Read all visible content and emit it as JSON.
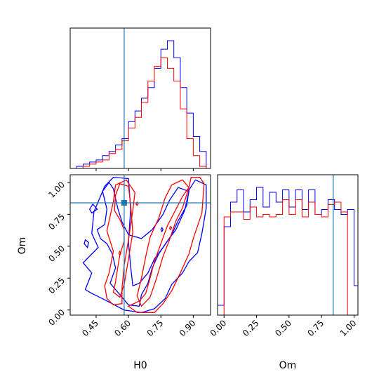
{
  "chart_data": {
    "type": "corner",
    "parameters": [
      "H0",
      "Om"
    ],
    "truth": {
      "H0": 0.58,
      "Om": 0.84
    },
    "colors": {
      "series_a": "#0000ff",
      "series_b": "#ff0000",
      "truth": "#1f77b4"
    },
    "x_range_H0": [
      0.33,
      0.98
    ],
    "x_range_Om": [
      -0.05,
      1.03
    ],
    "y_range_Om": [
      -0.04,
      1.06
    ],
    "axis_labels": {
      "x_left": "H0",
      "x_right": "Om",
      "y_left": "Om"
    },
    "ticks_H0": [
      "0.45",
      "0.60",
      "0.75",
      "0.90"
    ],
    "ticks_Om": [
      "0.00",
      "0.25",
      "0.50",
      "0.75",
      "1.00"
    ],
    "hist_H0": {
      "bins": [
        0.36,
        0.39,
        0.42,
        0.45,
        0.48,
        0.51,
        0.54,
        0.57,
        0.6,
        0.63,
        0.66,
        0.69,
        0.72,
        0.75,
        0.78,
        0.81,
        0.84,
        0.87,
        0.9,
        0.93,
        0.96
      ],
      "series": [
        {
          "counts": [
            1,
            2,
            3,
            4,
            6,
            8,
            11,
            14,
            22,
            27,
            33,
            38,
            47,
            56,
            60,
            52,
            38,
            26,
            15,
            8
          ]
        },
        {
          "counts": [
            0,
            1,
            2,
            3,
            4,
            7,
            9,
            13,
            19,
            24,
            31,
            41,
            48,
            52,
            47,
            41,
            28,
            14,
            6,
            1
          ]
        }
      ]
    },
    "hist_Om": {
      "bins": [
        -0.05,
        0.0,
        0.05,
        0.1,
        0.15,
        0.2,
        0.25,
        0.3,
        0.35,
        0.4,
        0.45,
        0.5,
        0.55,
        0.6,
        0.65,
        0.7,
        0.75,
        0.8,
        0.85,
        0.9,
        0.95,
        1.0,
        1.03
      ],
      "series": [
        {
          "counts": [
            4,
            36,
            46,
            51,
            42,
            47,
            52,
            44,
            50,
            46,
            51,
            44,
            51,
            43,
            51,
            41,
            43,
            47,
            43,
            41,
            43,
            12
          ]
        },
        {
          "counts": [
            0,
            40,
            42,
            42,
            39,
            44,
            40,
            41,
            40,
            41,
            47,
            41,
            47,
            40,
            46,
            41,
            40,
            45,
            46,
            42,
            0,
            0
          ]
        }
      ]
    },
    "contours": [
      {
        "series": 0,
        "points": [
          [
            0.455,
            0.63
          ],
          [
            0.47,
            0.56
          ],
          [
            0.5,
            0.52
          ],
          [
            0.525,
            0.44
          ],
          [
            0.54,
            0.33
          ],
          [
            0.515,
            0.21
          ],
          [
            0.6,
            0.04
          ],
          [
            0.65,
            0.03
          ],
          [
            0.66,
            0.12
          ],
          [
            0.69,
            0.21
          ],
          [
            0.71,
            0.33
          ],
          [
            0.74,
            0.44
          ],
          [
            0.78,
            0.54
          ],
          [
            0.82,
            0.63
          ],
          [
            0.86,
            0.78
          ],
          [
            0.88,
            0.93
          ],
          [
            0.83,
            0.96
          ],
          [
            0.79,
            0.86
          ],
          [
            0.76,
            0.75
          ],
          [
            0.71,
            0.63
          ],
          [
            0.66,
            0.56
          ],
          [
            0.6,
            0.59
          ],
          [
            0.57,
            0.69
          ],
          [
            0.55,
            0.8
          ],
          [
            0.53,
            0.95
          ],
          [
            0.51,
            1.0
          ],
          [
            0.48,
            0.93
          ],
          [
            0.5,
            0.79
          ],
          [
            0.49,
            0.67
          ]
        ]
      },
      {
        "series": 0,
        "points": [
          [
            0.39,
            0.37
          ],
          [
            0.43,
            0.29
          ],
          [
            0.4,
            0.16
          ],
          [
            0.43,
            0.13
          ],
          [
            0.49,
            0.08
          ],
          [
            0.58,
            0.0
          ],
          [
            0.66,
            -0.02
          ],
          [
            0.72,
            0.01
          ],
          [
            0.77,
            0.09
          ],
          [
            0.8,
            0.2
          ],
          [
            0.85,
            0.29
          ],
          [
            0.88,
            0.38
          ],
          [
            0.92,
            0.45
          ],
          [
            0.94,
            0.6
          ],
          [
            0.95,
            0.7
          ],
          [
            0.96,
            0.8
          ],
          [
            0.96,
            0.98
          ],
          [
            0.91,
            1.02
          ],
          [
            0.88,
            0.94
          ],
          [
            0.87,
            0.82
          ],
          [
            0.83,
            0.7
          ],
          [
            0.8,
            0.59
          ],
          [
            0.76,
            0.49
          ],
          [
            0.72,
            0.4
          ],
          [
            0.69,
            0.29
          ],
          [
            0.65,
            0.21
          ],
          [
            0.62,
            0.19
          ],
          [
            0.61,
            0.34
          ],
          [
            0.6,
            0.53
          ],
          [
            0.61,
            0.79
          ],
          [
            0.6,
            1.03
          ],
          [
            0.53,
            1.04
          ],
          [
            0.49,
            0.97
          ],
          [
            0.44,
            0.77
          ],
          [
            0.43,
            0.6
          ],
          [
            0.46,
            0.49
          ]
        ]
      },
      {
        "series": 0,
        "points": [
          [
            0.4,
            0.55
          ],
          [
            0.415,
            0.53
          ],
          [
            0.41,
            0.49
          ],
          [
            0.395,
            0.52
          ]
        ]
      },
      {
        "series": 0,
        "points": [
          [
            0.455,
            0.79
          ],
          [
            0.43,
            0.76
          ],
          [
            0.42,
            0.79
          ],
          [
            0.435,
            0.83
          ]
        ]
      },
      {
        "series": 1,
        "points": [
          [
            0.535,
            0.78
          ],
          [
            0.56,
            0.71
          ],
          [
            0.58,
            0.63
          ],
          [
            0.58,
            0.54
          ],
          [
            0.56,
            0.43
          ],
          [
            0.55,
            0.33
          ],
          [
            0.54,
            0.22
          ],
          [
            0.53,
            0.14
          ],
          [
            0.56,
            0.1
          ],
          [
            0.58,
            0.2
          ],
          [
            0.6,
            0.4
          ],
          [
            0.62,
            0.61
          ],
          [
            0.61,
            0.82
          ],
          [
            0.6,
            0.97
          ],
          [
            0.56,
            0.99
          ],
          [
            0.54,
            0.9
          ]
        ]
      },
      {
        "series": 1,
        "points": [
          [
            0.66,
            0.03
          ],
          [
            0.7,
            0.1
          ],
          [
            0.73,
            0.25
          ],
          [
            0.76,
            0.42
          ],
          [
            0.79,
            0.55
          ],
          [
            0.82,
            0.7
          ],
          [
            0.85,
            0.8
          ],
          [
            0.88,
            0.96
          ],
          [
            0.85,
            1.02
          ],
          [
            0.8,
            0.98
          ],
          [
            0.77,
            0.88
          ],
          [
            0.74,
            0.72
          ],
          [
            0.7,
            0.57
          ],
          [
            0.68,
            0.42
          ],
          [
            0.66,
            0.25
          ],
          [
            0.64,
            0.11
          ]
        ]
      },
      {
        "series": 1,
        "points": [
          [
            0.6,
            0.03
          ],
          [
            0.64,
            -0.02
          ],
          [
            0.72,
            -0.02
          ],
          [
            0.76,
            0.05
          ],
          [
            0.8,
            0.15
          ],
          [
            0.84,
            0.29
          ],
          [
            0.88,
            0.44
          ],
          [
            0.9,
            0.56
          ],
          [
            0.94,
            0.76
          ],
          [
            0.95,
            0.99
          ],
          [
            0.93,
            1.04
          ],
          [
            0.89,
            1.04
          ],
          [
            0.88,
            0.96
          ],
          [
            0.85,
            0.89
          ],
          [
            0.82,
            0.79
          ],
          [
            0.78,
            0.66
          ],
          [
            0.75,
            0.52
          ],
          [
            0.72,
            0.38
          ],
          [
            0.7,
            0.25
          ],
          [
            0.68,
            0.13
          ],
          [
            0.65,
            0.07
          ]
        ]
      },
      {
        "series": 1,
        "points": [
          [
            0.5,
            0.62
          ],
          [
            0.53,
            0.46
          ],
          [
            0.51,
            0.29
          ],
          [
            0.49,
            0.19
          ],
          [
            0.5,
            0.09
          ],
          [
            0.53,
            0.04
          ],
          [
            0.57,
            0.05
          ],
          [
            0.57,
            0.17
          ],
          [
            0.58,
            0.35
          ],
          [
            0.6,
            0.55
          ],
          [
            0.62,
            0.78
          ],
          [
            0.63,
            0.92
          ],
          [
            0.59,
            1.02
          ],
          [
            0.54,
            0.98
          ],
          [
            0.53,
            0.85
          ]
        ]
      },
      {
        "series": 1,
        "points": [
          [
            0.555,
            0.445
          ],
          [
            0.56,
            0.43
          ],
          [
            0.565,
            0.445
          ],
          [
            0.56,
            0.46
          ]
        ]
      },
      {
        "series": 1,
        "points": [
          [
            0.635,
            0.83
          ],
          [
            0.64,
            0.82
          ],
          [
            0.645,
            0.835
          ],
          [
            0.64,
            0.845
          ]
        ]
      },
      {
        "series": 1,
        "points": [
          [
            0.79,
            0.64
          ],
          [
            0.795,
            0.63
          ],
          [
            0.8,
            0.645
          ],
          [
            0.795,
            0.655
          ]
        ]
      },
      {
        "series": 0,
        "points": [
          [
            0.75,
            0.63
          ],
          [
            0.755,
            0.615
          ],
          [
            0.76,
            0.63
          ],
          [
            0.755,
            0.645
          ]
        ]
      }
    ]
  }
}
